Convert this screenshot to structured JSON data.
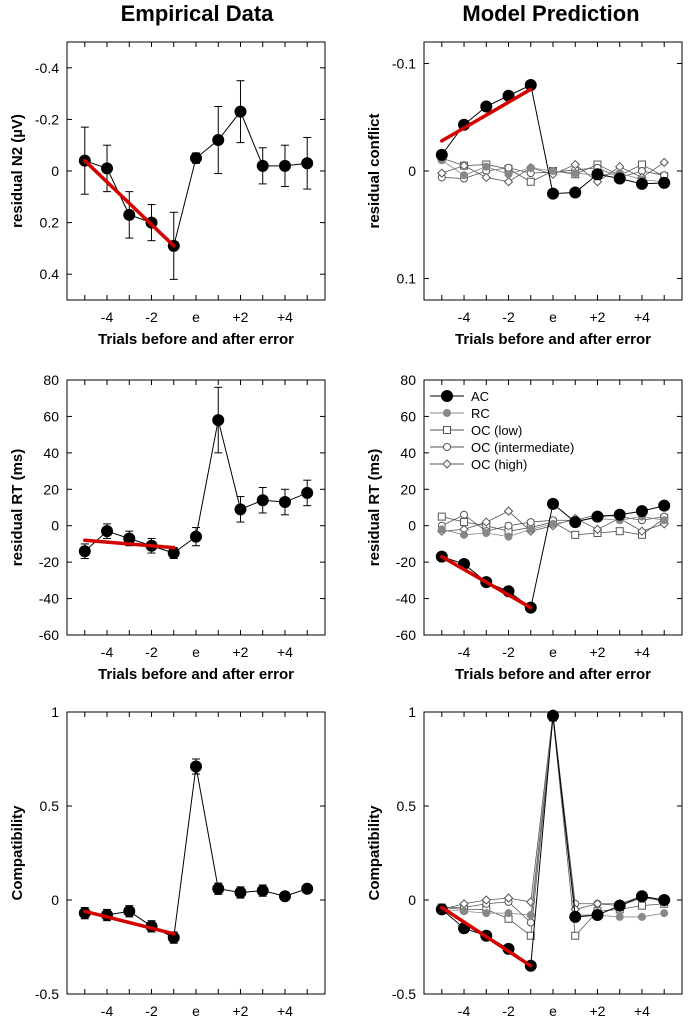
{
  "column_titles": [
    "Empirical Data",
    "Model Prediction"
  ],
  "legend": {
    "entries": [
      {
        "key": "AC",
        "label": "AC"
      },
      {
        "key": "RC",
        "label": "RC"
      },
      {
        "key": "OC_low",
        "label": "OC (low)"
      },
      {
        "key": "OC_int",
        "label": "OC (intermediate)"
      },
      {
        "key": "OC_high",
        "label": "OC (high)"
      }
    ]
  },
  "colors": {
    "axis": "#000000",
    "regression": "#d40000",
    "ac": "#000000",
    "rc": "#888888",
    "oc_marker": "#ffffff",
    "oc_line": "#555555"
  },
  "chart_data": [
    {
      "id": "emp_n2",
      "type": "line",
      "title": "",
      "xlabel": "Trials before and after error",
      "ylabel": "residual N2 (µV)",
      "ylim": [
        0.5,
        -0.5
      ],
      "yticks": [
        -0.4,
        -0.2,
        0,
        0.2,
        0.4
      ],
      "ytick_labels": [
        "-0.4",
        "-0.2",
        "0",
        "0.2",
        "0.4"
      ],
      "x": [
        -5,
        -4,
        -3,
        -2,
        -1,
        0,
        1,
        2,
        3,
        4,
        5
      ],
      "xticks": [
        -4,
        -2,
        0,
        2,
        4
      ],
      "xtick_labels": [
        "-4",
        "-2",
        "e",
        "+2",
        "+4"
      ],
      "series": [
        {
          "name": "Empirical",
          "values": [
            -0.04,
            -0.01,
            0.17,
            0.2,
            0.29,
            -0.05,
            -0.12,
            -0.23,
            -0.02,
            -0.02,
            -0.03
          ],
          "errors": [
            0.13,
            0.09,
            0.09,
            0.07,
            0.13,
            0.02,
            0.13,
            0.12,
            0.07,
            0.08,
            0.1
          ]
        }
      ],
      "regression": {
        "x": [
          -5,
          -1
        ],
        "y": [
          -0.04,
          0.29
        ]
      }
    },
    {
      "id": "mod_conflict",
      "type": "line",
      "title": "",
      "xlabel": "Trials before and after error",
      "ylabel": "residual conflict",
      "ylim": [
        0.12,
        -0.12
      ],
      "yticks": [
        0.1,
        0,
        -0.1
      ],
      "ytick_labels": [
        "0.1",
        "0",
        "-0.1"
      ],
      "x": [
        -5,
        -4,
        -3,
        -2,
        -1,
        0,
        1,
        2,
        3,
        4,
        5
      ],
      "xticks": [
        -4,
        -2,
        0,
        2,
        4
      ],
      "xtick_labels": [
        "-4",
        "-2",
        "e",
        "+2",
        "+4"
      ],
      "series": [
        {
          "name": "AC",
          "style": "ac",
          "values": [
            -0.015,
            -0.043,
            -0.06,
            -0.07,
            -0.08,
            0.021,
            0.02,
            0.003,
            0.007,
            0.012,
            0.011
          ]
        },
        {
          "name": "RC",
          "style": "rc",
          "values": [
            -0.01,
            0.004,
            -0.004,
            0.003,
            -0.003,
            0.0,
            0.002,
            0.004,
            0.002,
            0.008,
            0.01
          ]
        },
        {
          "name": "OC (low)",
          "style": "oc_square",
          "values": [
            -0.012,
            -0.005,
            -0.006,
            -0.002,
            0.01,
            0.0,
            0.003,
            -0.006,
            0.004,
            -0.006,
            0.005
          ]
        },
        {
          "name": "OC (intermediate)",
          "style": "oc_circle",
          "values": [
            0.006,
            0.007,
            0.0,
            -0.003,
            0.002,
            0.001,
            -0.001,
            -0.003,
            0.006,
            0.0,
            0.004
          ]
        },
        {
          "name": "OC (high)",
          "style": "oc_diamond",
          "values": [
            0.002,
            -0.005,
            0.006,
            0.01,
            -0.003,
            0.003,
            -0.006,
            0.01,
            -0.004,
            0.006,
            -0.008
          ]
        }
      ],
      "regression": {
        "x": [
          -5,
          -1
        ],
        "y": [
          -0.028,
          -0.076
        ]
      }
    },
    {
      "id": "emp_rt",
      "type": "line",
      "title": "",
      "xlabel": "Trials before and after error",
      "ylabel": "residual RT (ms)",
      "ylim": [
        -60,
        80
      ],
      "yticks": [
        80,
        60,
        40,
        20,
        0,
        -20,
        -40,
        -60
      ],
      "ytick_labels": [
        "80",
        "60",
        "40",
        "20",
        "0",
        "-20",
        "-40",
        "-60"
      ],
      "x": [
        -5,
        -4,
        -3,
        -2,
        -1,
        0,
        1,
        2,
        3,
        4,
        5
      ],
      "xticks": [
        -4,
        -2,
        0,
        2,
        4
      ],
      "xtick_labels": [
        "-4",
        "-2",
        "e",
        "+2",
        "+4"
      ],
      "series": [
        {
          "name": "Empirical",
          "values": [
            -14,
            -3,
            -7,
            -11,
            -15,
            -6,
            58,
            9,
            14,
            13,
            18
          ],
          "errors": [
            4,
            4,
            4,
            4,
            3,
            5,
            18,
            7,
            7,
            7,
            7
          ]
        }
      ],
      "regression": {
        "x": [
          -5,
          -1
        ],
        "y": [
          -8,
          -12
        ]
      }
    },
    {
      "id": "mod_rt",
      "type": "line",
      "title": "",
      "xlabel": "Trials before and after error",
      "ylabel": "residual RT (ms)",
      "ylim": [
        -60,
        80
      ],
      "yticks": [
        80,
        60,
        40,
        20,
        0,
        -20,
        -40,
        -60
      ],
      "ytick_labels": [
        "80",
        "60",
        "40",
        "20",
        "0",
        "-20",
        "-40",
        "-60"
      ],
      "x": [
        -5,
        -4,
        -3,
        -2,
        -1,
        0,
        1,
        2,
        3,
        4,
        5
      ],
      "xticks": [
        -4,
        -2,
        0,
        2,
        4
      ],
      "xtick_labels": [
        "-4",
        "-2",
        "e",
        "+2",
        "+4"
      ],
      "series": [
        {
          "name": "AC",
          "style": "ac",
          "values": [
            -17,
            -21,
            -31,
            -36,
            -45,
            12,
            2,
            5,
            6,
            8,
            11
          ]
        },
        {
          "name": "RC",
          "style": "rc",
          "values": [
            -2,
            -5,
            -4,
            -6,
            -2,
            1,
            3,
            4,
            3,
            5,
            3
          ]
        },
        {
          "name": "OC (low)",
          "style": "oc_square",
          "values": [
            5,
            2,
            0,
            -3,
            -1,
            2,
            -5,
            -4,
            -3,
            -5,
            4
          ]
        },
        {
          "name": "OC (intermediate)",
          "style": "oc_circle",
          "values": [
            0,
            6,
            -3,
            0,
            2,
            3,
            3,
            6,
            5,
            3,
            5
          ]
        },
        {
          "name": "OC (high)",
          "style": "oc_diamond",
          "values": [
            -3,
            -2,
            2,
            8,
            -3,
            0,
            4,
            -2,
            4,
            -3,
            1
          ]
        }
      ],
      "regression": {
        "x": [
          -5,
          -1
        ],
        "y": [
          -17,
          -45
        ]
      }
    },
    {
      "id": "emp_comp",
      "type": "line",
      "title": "",
      "xlabel": "Trials before and after error",
      "ylabel": "Compatibility",
      "ylim": [
        -0.5,
        1
      ],
      "yticks": [
        1,
        0.5,
        0,
        -0.5
      ],
      "ytick_labels": [
        "1",
        "0.5",
        "0",
        "-0.5"
      ],
      "x": [
        -5,
        -4,
        -3,
        -2,
        -1,
        0,
        1,
        2,
        3,
        4,
        5
      ],
      "xticks": [
        -4,
        -2,
        0,
        2,
        4
      ],
      "xtick_labels": [
        "-4",
        "-2",
        "e",
        "+2",
        "+4"
      ],
      "series": [
        {
          "name": "Empirical",
          "values": [
            -0.07,
            -0.08,
            -0.06,
            -0.14,
            -0.2,
            0.71,
            0.06,
            0.04,
            0.05,
            0.02,
            0.06
          ],
          "errors": [
            0.03,
            0.03,
            0.03,
            0.03,
            0.03,
            0.04,
            0.03,
            0.03,
            0.03,
            0.02,
            0.02
          ]
        }
      ],
      "regression": {
        "x": [
          -5,
          -1
        ],
        "y": [
          -0.06,
          -0.18
        ]
      }
    },
    {
      "id": "mod_comp",
      "type": "line",
      "title": "",
      "xlabel": "Trials before and after error",
      "ylabel": "Compatibility",
      "ylim": [
        -0.5,
        1
      ],
      "yticks": [
        1,
        0.5,
        0,
        -0.5
      ],
      "ytick_labels": [
        "1",
        "0.5",
        "0",
        "-0.5"
      ],
      "x": [
        -5,
        -4,
        -3,
        -2,
        -1,
        0,
        1,
        2,
        3,
        4,
        5
      ],
      "xticks": [
        -4,
        -2,
        0,
        2,
        4
      ],
      "xtick_labels": [
        "-4",
        "-2",
        "e",
        "+2",
        "+4"
      ],
      "series": [
        {
          "name": "AC",
          "style": "ac",
          "values": [
            -0.05,
            -0.15,
            -0.19,
            -0.26,
            -0.35,
            0.98,
            -0.09,
            -0.08,
            -0.03,
            0.02,
            0.0
          ]
        },
        {
          "name": "RC",
          "style": "rc",
          "values": [
            -0.05,
            -0.06,
            -0.07,
            -0.07,
            -0.08,
            0.97,
            -0.08,
            -0.08,
            -0.09,
            -0.09,
            -0.07
          ]
        },
        {
          "name": "OC (low)",
          "style": "oc_square",
          "values": [
            -0.04,
            -0.05,
            -0.05,
            -0.1,
            -0.19,
            0.97,
            -0.19,
            -0.06,
            -0.05,
            -0.03,
            -0.02
          ]
        },
        {
          "name": "OC (intermediate)",
          "style": "oc_circle",
          "values": [
            -0.04,
            -0.04,
            -0.02,
            -0.01,
            -0.12,
            0.98,
            -0.02,
            -0.02,
            -0.03,
            0.01,
            0.0
          ]
        },
        {
          "name": "OC (high)",
          "style": "oc_diamond",
          "values": [
            -0.05,
            -0.02,
            0.0,
            0.01,
            -0.01,
            0.99,
            -0.05,
            -0.02,
            -0.02,
            0.02,
            -0.01
          ]
        }
      ],
      "regression": {
        "x": [
          -5,
          -1
        ],
        "y": [
          -0.04,
          -0.35
        ]
      }
    }
  ]
}
